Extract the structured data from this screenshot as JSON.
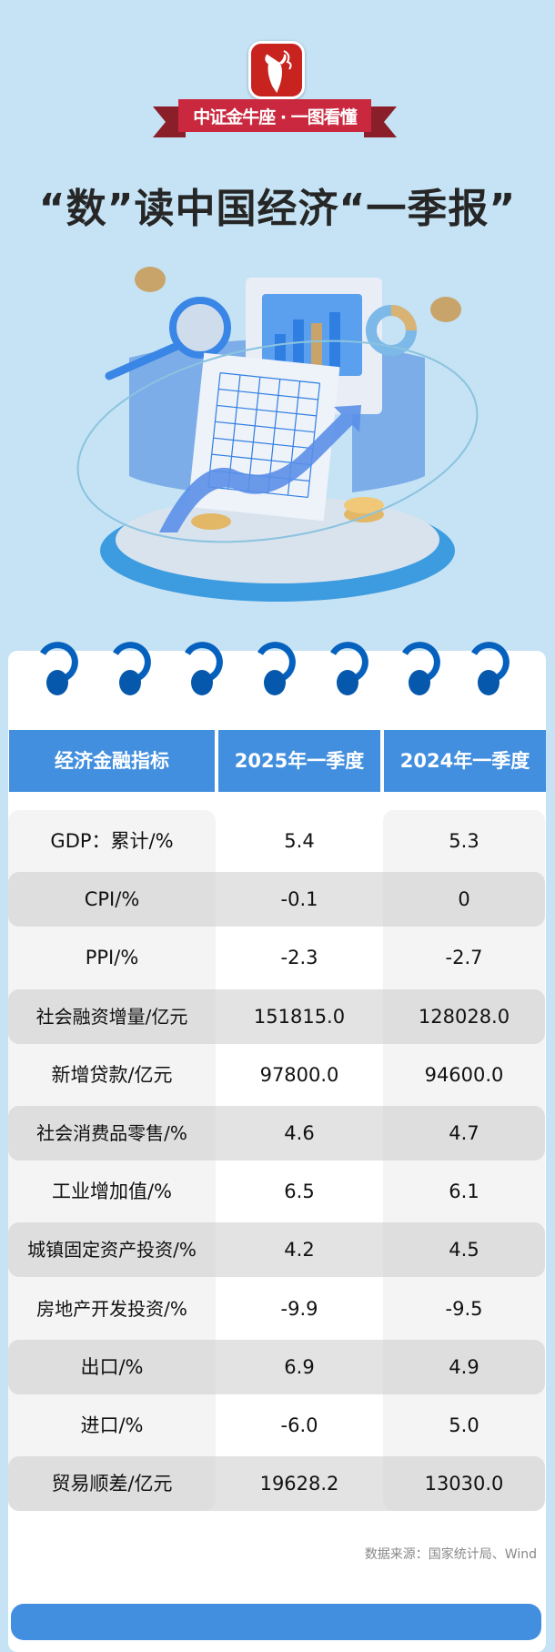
{
  "brand": {
    "name": "中证金牛座",
    "ribbon_text": "中证金牛座 · 一图看懂",
    "color": "#c8231f"
  },
  "title": "“数”读中国经济“一季报”",
  "table": {
    "headers": [
      "经济金融指标",
      "2025年一季度",
      "2024年一季度"
    ],
    "header_color": "#428fdf",
    "rows": [
      [
        "GDP：累计/%",
        "5.4",
        "5.3"
      ],
      [
        "CPI/%",
        "-0.1",
        "0"
      ],
      [
        "PPI/%",
        "-2.3",
        "-2.7"
      ],
      [
        "社会融资增量/亿元",
        "151815.0",
        "128028.0"
      ],
      [
        "新增贷款/亿元",
        "97800.0",
        "94600.0"
      ],
      [
        "社会消费品零售/%",
        "4.6",
        "4.7"
      ],
      [
        "工业增加值/%",
        "6.5",
        "6.1"
      ],
      [
        "城镇固定资产投资/%",
        "4.2",
        "4.5"
      ],
      [
        "房地产开发投资/%",
        "-9.9",
        "-9.5"
      ],
      [
        "出口/%",
        "6.9",
        "4.9"
      ],
      [
        "进口/%",
        "-6.0",
        "5.0"
      ],
      [
        "贸易顺差/亿元",
        "19628.2",
        "13030.0"
      ]
    ]
  },
  "source": "数据来源：国家统计局、Wind"
}
